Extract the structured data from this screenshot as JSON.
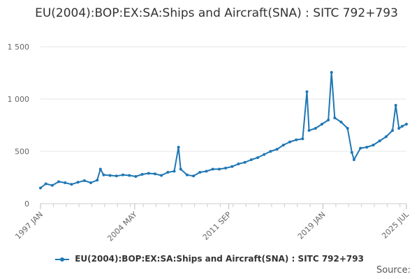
{
  "chart_data": {
    "type": "line",
    "title": "EU(2004):BOP:EX:SA:Ships and Aircraft(SNA) : SITC 792+793",
    "xlabel": "",
    "ylabel": "",
    "ylim": [
      0,
      1500
    ],
    "yticks": [
      0,
      500,
      1000,
      1500
    ],
    "ytick_labels": [
      "0",
      "500",
      "1 000",
      "1 500"
    ],
    "xticks": [
      "1997-01",
      "2004-05",
      "2011-09",
      "2019-01",
      "2025-07"
    ],
    "xtick_labels": [
      "1997 JAN",
      "2004 MAY",
      "2011 SEP",
      "2019 JAN",
      "2025 JUL"
    ],
    "xlim": [
      "1997-01",
      "2025-07"
    ],
    "grid": true,
    "legend_position": "bottom",
    "series": [
      {
        "name": "EU(2004):BOP:EX:SA:Ships and Aircraft(SNA) : SITC 792+793",
        "color": "#1f77b4",
        "points": [
          [
            "1997-01",
            150
          ],
          [
            "1997-06",
            190
          ],
          [
            "1997-12",
            175
          ],
          [
            "1998-06",
            210
          ],
          [
            "1998-12",
            200
          ],
          [
            "1999-06",
            185
          ],
          [
            "1999-12",
            205
          ],
          [
            "2000-06",
            220
          ],
          [
            "2000-12",
            200
          ],
          [
            "2001-06",
            225
          ],
          [
            "2001-09",
            330
          ],
          [
            "2001-12",
            275
          ],
          [
            "2002-06",
            270
          ],
          [
            "2002-12",
            265
          ],
          [
            "2003-06",
            275
          ],
          [
            "2003-12",
            270
          ],
          [
            "2004-06",
            260
          ],
          [
            "2004-12",
            280
          ],
          [
            "2005-06",
            290
          ],
          [
            "2005-12",
            285
          ],
          [
            "2006-06",
            270
          ],
          [
            "2006-12",
            300
          ],
          [
            "2007-06",
            310
          ],
          [
            "2007-10",
            540
          ],
          [
            "2007-12",
            330
          ],
          [
            "2008-06",
            275
          ],
          [
            "2008-12",
            265
          ],
          [
            "2009-06",
            300
          ],
          [
            "2009-12",
            310
          ],
          [
            "2010-06",
            330
          ],
          [
            "2010-12",
            330
          ],
          [
            "2011-06",
            340
          ],
          [
            "2011-12",
            355
          ],
          [
            "2012-06",
            380
          ],
          [
            "2012-12",
            395
          ],
          [
            "2013-06",
            420
          ],
          [
            "2013-12",
            440
          ],
          [
            "2014-06",
            470
          ],
          [
            "2014-12",
            500
          ],
          [
            "2015-06",
            520
          ],
          [
            "2015-12",
            560
          ],
          [
            "2016-06",
            590
          ],
          [
            "2016-12",
            610
          ],
          [
            "2017-06",
            620
          ],
          [
            "2017-10",
            1070
          ],
          [
            "2017-12",
            700
          ],
          [
            "2018-06",
            720
          ],
          [
            "2018-12",
            760
          ],
          [
            "2019-06",
            800
          ],
          [
            "2019-09",
            1255
          ],
          [
            "2019-12",
            820
          ],
          [
            "2020-06",
            780
          ],
          [
            "2020-12",
            720
          ],
          [
            "2021-04",
            490
          ],
          [
            "2021-06",
            420
          ],
          [
            "2021-12",
            530
          ],
          [
            "2022-06",
            540
          ],
          [
            "2022-12",
            560
          ],
          [
            "2023-06",
            600
          ],
          [
            "2023-12",
            640
          ],
          [
            "2024-06",
            700
          ],
          [
            "2024-09",
            940
          ],
          [
            "2024-12",
            720
          ],
          [
            "2025-03",
            740
          ],
          [
            "2025-07",
            760
          ]
        ]
      }
    ],
    "source_label": "Source:"
  }
}
